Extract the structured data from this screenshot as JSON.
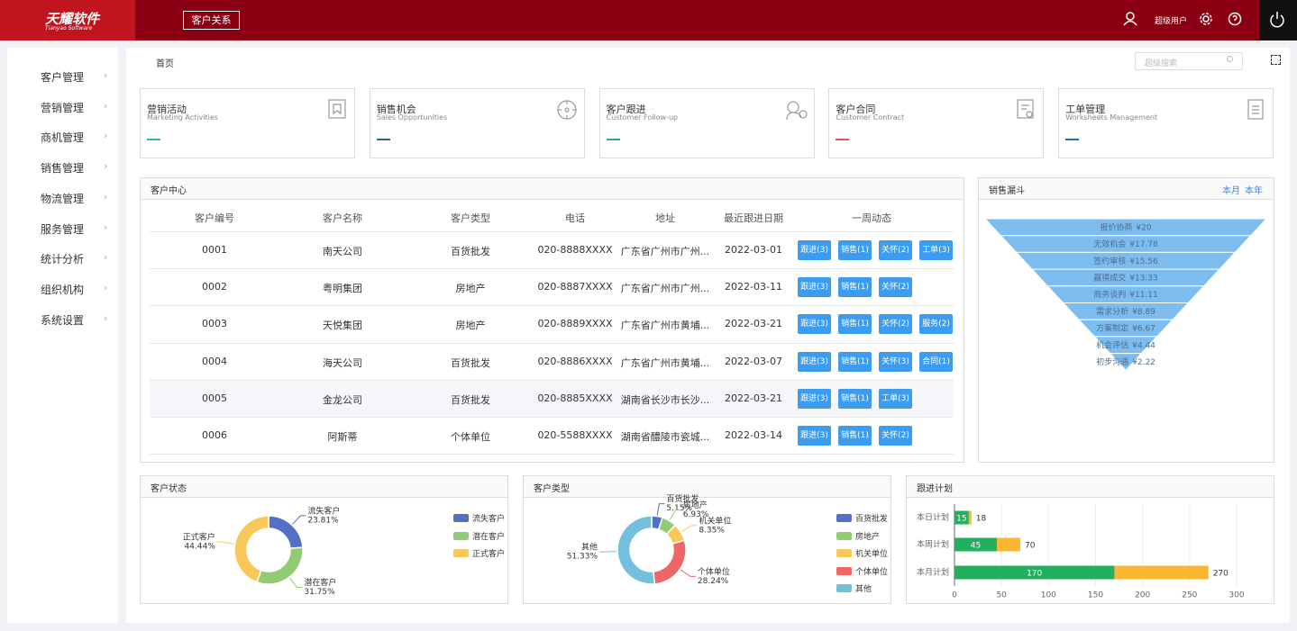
{
  "header": {
    "logo": "天耀软件",
    "logo_sub": "Tianyao Software",
    "module": "客户关系",
    "user": "超级用户"
  },
  "sidebar": [
    "客户管理",
    "营销管理",
    "商机管理",
    "销售管理",
    "物流管理",
    "服务管理",
    "统计分析",
    "组织机构",
    "系统设置"
  ],
  "breadcrumb": "首页",
  "search_placeholder": "超级搜索",
  "cards": [
    {
      "title": "营销活动",
      "subtitle": "Marketing Activities",
      "color": "#2fb5b9"
    },
    {
      "title": "销售机会",
      "subtitle": "Sales Opportunities",
      "color": "#2a6a7a"
    },
    {
      "title": "客户跟进",
      "subtitle": "Customer Follow-up",
      "color": "#2ab06f"
    },
    {
      "title": "客户合同",
      "subtitle": "Customer Contract",
      "color": "#e05060"
    },
    {
      "title": "工单管理",
      "subtitle": "Worksheets Management",
      "color": "#1e6fb0"
    }
  ],
  "table": {
    "title": "客户中心",
    "columns": [
      "客户编号",
      "客户名称",
      "客户类型",
      "电话",
      "地址",
      "最近跟进日期",
      "一周动态"
    ],
    "rows": [
      [
        "0001",
        "南天公司",
        "百货批发",
        "020-8888XXXX",
        "广东省广州市广州...",
        "2022-03-01",
        [
          "跟进(3)",
          "销售(1)",
          "关怀(2)",
          "工单(3)"
        ]
      ],
      [
        "0002",
        "粤明集团",
        "房地产",
        "020-8887XXXX",
        "广东省广州市广州...",
        "2022-03-11",
        [
          "跟进(3)",
          "销售(1)",
          "关怀(2)"
        ]
      ],
      [
        "0003",
        "天悦集团",
        "房地产",
        "020-8889XXXX",
        "广东省广州市黄埔...",
        "2022-03-21",
        [
          "跟进(3)",
          "销售(1)",
          "关怀(2)",
          "服务(2)"
        ]
      ],
      [
        "0004",
        "海天公司",
        "百货批发",
        "020-8886XXXX",
        "广东省广州市黄埔...",
        "2022-03-07",
        [
          "跟进(3)",
          "销售(1)",
          "关怀(3)",
          "合同(1)"
        ]
      ],
      [
        "0005",
        "金龙公司",
        "百货批发",
        "020-8885XXXX",
        "湖南省长沙市长沙...",
        "2022-03-21",
        [
          "跟进(3)",
          "销售(1)",
          "工单(3)"
        ]
      ],
      [
        "0006",
        "阿斯蒂",
        "个体单位",
        "020-5588XXXX",
        "湖南省醴陵市瓷城...",
        "2022-03-14",
        [
          "跟进(3)",
          "销售(1)",
          "关怀(2)"
        ]
      ]
    ]
  },
  "chart_data": [
    {
      "type": "funnel",
      "title": "销售漏斗",
      "tabs": [
        "本月",
        "本年"
      ],
      "color": "#7dbcef",
      "categories": [
        "报价协商",
        "无效机会",
        "签约审核",
        "赢得成交",
        "商务谈判",
        "需求分析",
        "方案制定",
        "机会评估",
        "初步沟通"
      ],
      "values": [
        20,
        17.78,
        15.56,
        13.33,
        11.11,
        8.89,
        6.67,
        4.44,
        2.22
      ],
      "value_labels": [
        "¥20",
        "¥17.78",
        "¥15.56",
        "¥13.33",
        "¥11.11",
        "¥8.89",
        "¥6.67",
        "¥4.44",
        "¥2.22"
      ]
    },
    {
      "type": "pie",
      "title": "客户状态",
      "categories": [
        "流失客户",
        "潜在客户",
        "正式客户"
      ],
      "values": [
        23.81,
        31.75,
        44.44
      ],
      "value_labels": [
        "23.81%",
        "31.75%",
        "44.44%"
      ],
      "colors": [
        "#5470c6",
        "#91cc75",
        "#fac858"
      ]
    },
    {
      "type": "pie",
      "title": "客户类型",
      "categories": [
        "百货批发",
        "房地产",
        "机关单位",
        "个体单位",
        "其他"
      ],
      "values": [
        5.15,
        6.93,
        8.35,
        28.24,
        51.33
      ],
      "value_labels": [
        "5.15%",
        "6.93%",
        "8.35%",
        "28.24%",
        "51.33%"
      ],
      "colors": [
        "#5470c6",
        "#91cc75",
        "#fac858",
        "#ee6666",
        "#73c0de"
      ]
    },
    {
      "type": "hbar",
      "title": "跟进计划",
      "categories": [
        "本日计划",
        "本周计划",
        "本月计划"
      ],
      "series": [
        {
          "color": "#22b05e",
          "values": [
            15,
            45,
            170
          ],
          "label_position": "inside"
        },
        {
          "color": "#fbb731",
          "values": [
            18,
            70,
            270
          ],
          "label_position": "outside"
        }
      ],
      "xlim": [
        0,
        300
      ],
      "xticks": [
        0,
        50,
        100,
        150,
        200,
        250,
        300
      ],
      "grid": true
    }
  ]
}
